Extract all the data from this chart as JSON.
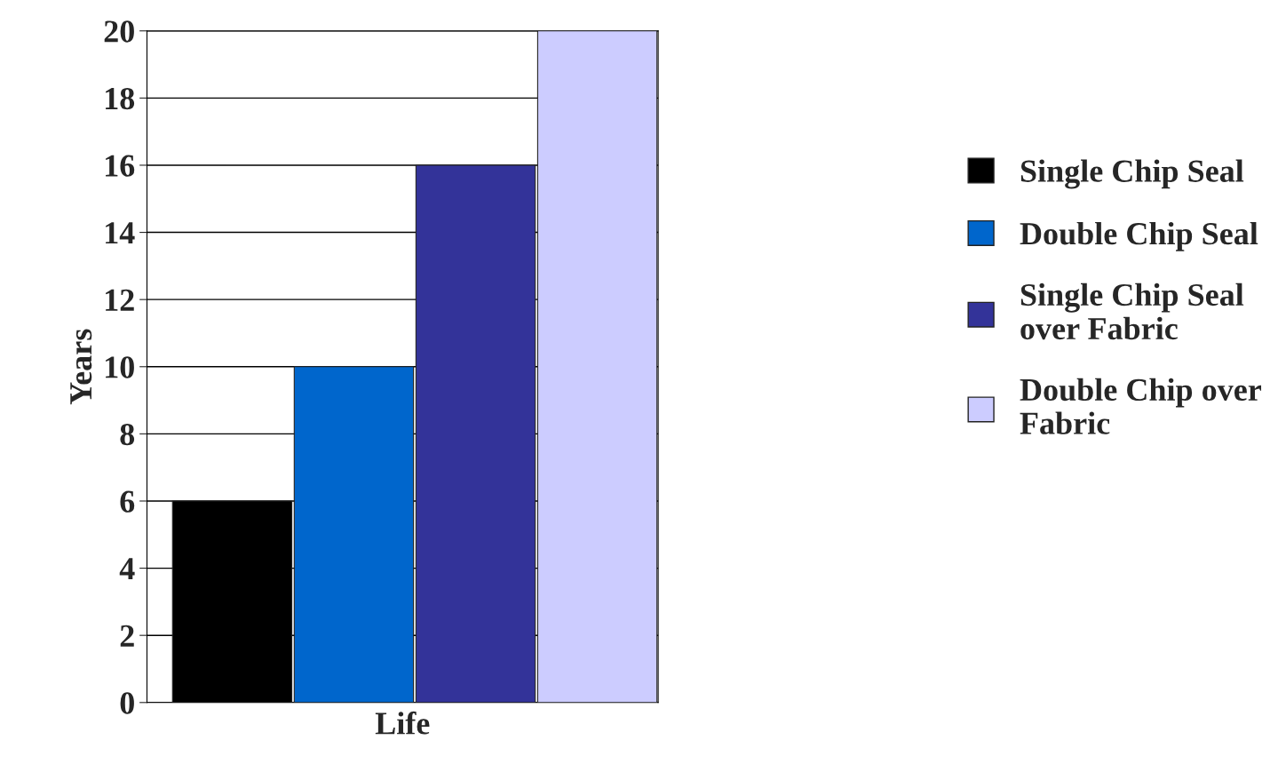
{
  "chart_data": {
    "type": "bar",
    "ylabel": "Years",
    "xlabel": "Life",
    "categories": [
      null,
      null,
      null,
      null
    ],
    "series": [
      {
        "name": "Single Chip Seal",
        "color": "#000000",
        "values": [
          6,
          null,
          null,
          null
        ]
      },
      {
        "name": "Double Chip Seal",
        "color": "#0066cc",
        "values": [
          null,
          10,
          null,
          null
        ]
      },
      {
        "name": "Single Chip Seal\nover Fabric",
        "color": "#333399",
        "values": [
          null,
          null,
          16,
          null
        ]
      },
      {
        "name": "Double Chip over\nFabric",
        "color": "#ccccff",
        "values": [
          null,
          null,
          null,
          20
        ]
      }
    ],
    "ylim": [
      0,
      20
    ],
    "yticks": [
      0,
      2,
      4,
      6,
      8,
      10,
      12,
      14,
      16,
      18,
      20
    ],
    "grid": "y",
    "legend": "right"
  }
}
